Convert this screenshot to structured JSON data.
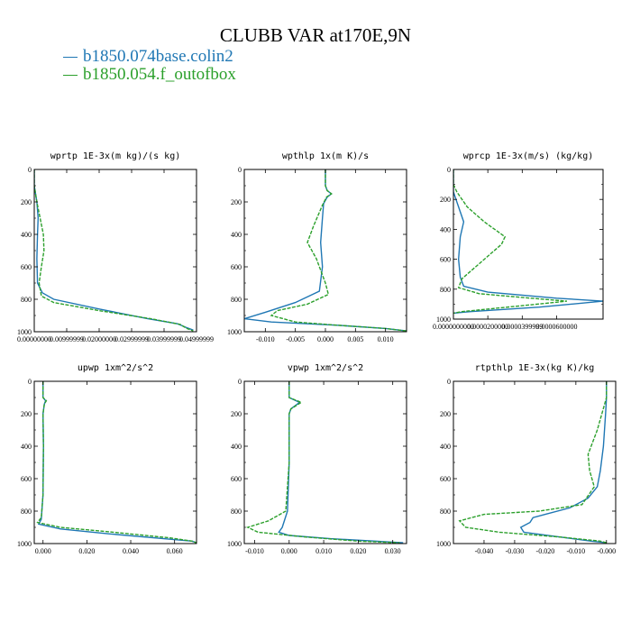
{
  "figure": {
    "title": "CLUBB VAR at170E,9N",
    "legend": [
      {
        "label": "b1850.074base.colin2",
        "color": "#1f77b4"
      },
      {
        "label": "b1850.054.f_outofbox",
        "color": "#2ca02c"
      }
    ]
  },
  "chart_data": [
    {
      "type": "line",
      "title": "wprtp   1E-3x(m kg)/(s kg)",
      "xlim": [
        0,
        0.05
      ],
      "ylim": [
        1000,
        0
      ],
      "xticks": [
        0.0,
        0.01,
        0.02,
        0.03,
        0.04,
        0.05
      ],
      "xticklabels": [
        "0.00000000",
        "0.00999999",
        "0.02000000",
        "0.02999999",
        "0.03999999",
        "0.04999999"
      ],
      "yticks": [
        0,
        200,
        400,
        600,
        800,
        1000
      ],
      "yticklabels": [
        "0",
        "200",
        "400",
        "600",
        "800",
        "1000"
      ],
      "series": [
        {
          "name": "b1850.074base.colin2",
          "style": "solid",
          "x": [
            0.0,
            0.0,
            0.0008,
            0.0012,
            0.001,
            0.0008,
            0.001,
            0.0025,
            0.006,
            0.02,
            0.035,
            0.044,
            0.047,
            0.049
          ],
          "y": [
            0,
            100,
            200,
            300,
            400,
            550,
            700,
            760,
            800,
            860,
            920,
            950,
            975,
            990
          ]
        },
        {
          "name": "b1850.054.f_outofbox",
          "style": "dashed",
          "x": [
            0.0,
            0.0,
            0.0008,
            0.0018,
            0.0028,
            0.003,
            0.0022,
            0.0015,
            0.0022,
            0.006,
            0.02,
            0.036,
            0.045,
            0.047,
            0.049
          ],
          "y": [
            0,
            100,
            200,
            300,
            400,
            500,
            600,
            700,
            780,
            820,
            870,
            920,
            955,
            980,
            995
          ]
        }
      ]
    },
    {
      "type": "line",
      "title": "wpthlp   1x(m K)/s",
      "xlim": [
        -0.0135,
        0.0135
      ],
      "ylim": [
        1000,
        0
      ],
      "xticks": [
        -0.01,
        -0.005,
        0.0,
        0.005,
        0.01
      ],
      "xticklabels": [
        "-0.010",
        "-0.005",
        "0.000",
        "0.005",
        "0.010"
      ],
      "yticks": [
        0,
        200,
        400,
        600,
        800,
        1000
      ],
      "yticklabels": [
        "0",
        "200",
        "400",
        "600",
        "800",
        "1000"
      ],
      "series": [
        {
          "name": "b1850.074base.colin2",
          "style": "solid",
          "x": [
            0.0,
            0.0,
            0.0003,
            0.001,
            0.0003,
            -0.0003,
            -0.0005,
            -0.0008,
            -0.0005,
            -0.001,
            -0.005,
            -0.01,
            -0.0135,
            -0.009,
            0.002,
            0.01,
            0.0135
          ],
          "y": [
            0,
            100,
            130,
            150,
            170,
            210,
            300,
            450,
            600,
            750,
            820,
            880,
            920,
            940,
            960,
            980,
            995
          ]
        },
        {
          "name": "b1850.054.f_outofbox",
          "style": "dashed",
          "x": [
            0.0,
            0.0,
            0.0003,
            0.001,
            0.0002,
            -0.0005,
            -0.002,
            -0.003,
            -0.0015,
            0.0,
            0.0005,
            -0.003,
            -0.008,
            -0.009,
            -0.005,
            0.002,
            0.01,
            0.0135
          ],
          "y": [
            0,
            100,
            130,
            150,
            170,
            220,
            350,
            450,
            550,
            700,
            770,
            830,
            870,
            900,
            940,
            960,
            980,
            995
          ]
        }
      ]
    },
    {
      "type": "line",
      "title": "wprcp   1E-3x(m/s) (kg/kg)",
      "xlim": [
        0,
        8.7e-05
      ],
      "ylim": [
        1000,
        0
      ],
      "xticks": [
        0.0,
        2e-05,
        4e-05,
        6e-05
      ],
      "xticklabels": [
        "0.0000000000",
        "0.0000200000",
        "0.0000399999",
        "0.0000600000"
      ],
      "yticks": [
        0,
        200,
        400,
        600,
        800,
        1000
      ],
      "yticklabels": [
        "0",
        "200",
        "400",
        "600",
        "800",
        "1000"
      ],
      "series": [
        {
          "name": "b1850.074base.colin2",
          "style": "solid",
          "x": [
            0.0,
            0.0,
            3e-06,
            6e-06,
            4e-06,
            3e-06,
            4e-06,
            6e-06,
            2e-05,
            6e-05,
            8.7e-05,
            5e-05,
            1e-05,
            0.0
          ],
          "y": [
            0,
            150,
            250,
            350,
            450,
            600,
            720,
            780,
            820,
            860,
            880,
            920,
            950,
            960
          ]
        },
        {
          "name": "b1850.054.f_outofbox",
          "style": "dashed",
          "x": [
            0.0,
            0.0,
            2e-06,
            8e-06,
            1.8e-05,
            3e-05,
            2.8e-05,
            1.8e-05,
            5e-06,
            3e-06,
            1.5e-05,
            4.5e-05,
            6.6e-05,
            4e-05,
            5e-06,
            0.0
          ],
          "y": [
            0,
            100,
            150,
            250,
            350,
            450,
            500,
            600,
            730,
            790,
            830,
            860,
            880,
            910,
            950,
            960
          ]
        }
      ]
    },
    {
      "type": "line",
      "title": "upwp   1xm^2/s^2",
      "xlim": [
        -0.004,
        0.07
      ],
      "ylim": [
        1000,
        0
      ],
      "xticks": [
        0.0,
        0.02,
        0.04,
        0.06
      ],
      "xticklabels": [
        "0.000",
        "0.020",
        "0.040",
        "0.060"
      ],
      "yticks": [
        0,
        200,
        400,
        600,
        800,
        1000
      ],
      "yticklabels": [
        "0",
        "200",
        "400",
        "600",
        "800",
        "1000"
      ],
      "series": [
        {
          "name": "b1850.074base.colin2",
          "style": "solid",
          "x": [
            0.0,
            0.0,
            0.0012,
            0.0006,
            0.0,
            0.0002,
            0.0,
            -0.0008,
            -0.002,
            0.008,
            0.03,
            0.055,
            0.068,
            0.07
          ],
          "y": [
            0,
            100,
            120,
            140,
            200,
            400,
            700,
            850,
            880,
            910,
            940,
            970,
            985,
            995
          ]
        },
        {
          "name": "b1850.054.f_outofbox",
          "style": "dashed",
          "x": [
            0.0,
            0.0,
            0.0015,
            0.0006,
            0.0,
            0.0002,
            0.0,
            -0.0008,
            -0.0025,
            0.008,
            0.032,
            0.058,
            0.068,
            0.07
          ],
          "y": [
            0,
            100,
            120,
            140,
            200,
            400,
            700,
            840,
            870,
            900,
            930,
            965,
            985,
            995
          ]
        }
      ]
    },
    {
      "type": "line",
      "title": "vpwp   1xm^2/s^2",
      "xlim": [
        -0.013,
        0.034
      ],
      "ylim": [
        1000,
        0
      ],
      "xticks": [
        -0.01,
        0.0,
        0.01,
        0.02,
        0.03
      ],
      "xticklabels": [
        "-0.010",
        "0.000",
        "0.010",
        "0.020",
        "0.030"
      ],
      "yticks": [
        0,
        200,
        400,
        600,
        800,
        1000
      ],
      "yticklabels": [
        "0",
        "200",
        "400",
        "600",
        "800",
        "1000"
      ],
      "series": [
        {
          "name": "b1850.074base.colin2",
          "style": "solid",
          "x": [
            0.0,
            0.0,
            0.003,
            0.0005,
            0.0,
            0.0,
            -0.0005,
            -0.002,
            -0.003,
            0.0,
            0.012,
            0.025,
            0.033
          ],
          "y": [
            0,
            100,
            130,
            170,
            200,
            500,
            800,
            900,
            930,
            950,
            970,
            985,
            995
          ]
        },
        {
          "name": "b1850.054.f_outofbox",
          "style": "dashed",
          "x": [
            0.0,
            0.0,
            0.0035,
            0.0005,
            0.0,
            0.0,
            -0.001,
            -0.006,
            -0.012,
            -0.009,
            0.005,
            0.02,
            0.032
          ],
          "y": [
            0,
            100,
            130,
            170,
            200,
            500,
            800,
            860,
            900,
            930,
            960,
            985,
            995
          ]
        }
      ]
    },
    {
      "type": "line",
      "title": "rtpthlp   1E-3x(kg K)/kg",
      "xlim": [
        -0.05,
        0.003
      ],
      "ylim": [
        1000,
        0
      ],
      "xticks": [
        -0.04,
        -0.03,
        -0.02,
        -0.01,
        0.0
      ],
      "xticklabels": [
        "-0.040",
        "-0.030",
        "-0.020",
        "-0.010",
        "-0.000"
      ],
      "yticks": [
        0,
        200,
        400,
        600,
        800,
        1000
      ],
      "yticklabels": [
        "0",
        "200",
        "400",
        "600",
        "800",
        "1000"
      ],
      "series": [
        {
          "name": "b1850.074base.colin2",
          "style": "solid",
          "x": [
            0.0,
            0.0,
            -0.0003,
            -0.001,
            -0.002,
            -0.003,
            -0.006,
            -0.012,
            -0.02,
            -0.024,
            -0.025,
            -0.028,
            -0.027,
            -0.015,
            -0.005,
            0.0
          ],
          "y": [
            0,
            100,
            200,
            400,
            550,
            650,
            720,
            780,
            820,
            840,
            870,
            900,
            930,
            960,
            985,
            995
          ]
        },
        {
          "name": "b1850.054.f_outofbox",
          "style": "dashed",
          "x": [
            0.0,
            0.0,
            -0.003,
            -0.006,
            -0.0055,
            -0.004,
            -0.008,
            -0.022,
            -0.04,
            -0.048,
            -0.046,
            -0.035,
            -0.015,
            -0.002,
            0.0
          ],
          "y": [
            0,
            100,
            300,
            450,
            550,
            650,
            760,
            800,
            820,
            860,
            900,
            930,
            960,
            985,
            995
          ]
        }
      ]
    }
  ]
}
